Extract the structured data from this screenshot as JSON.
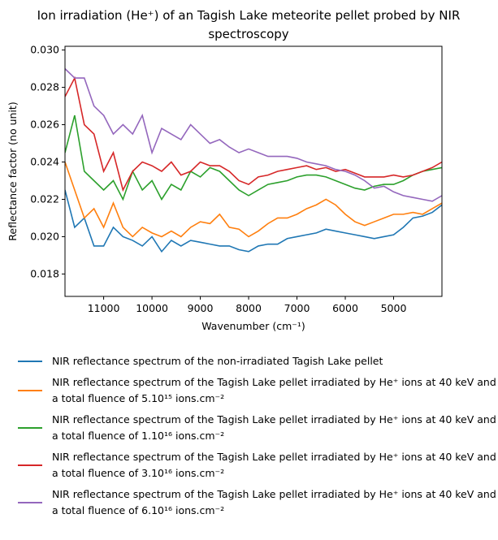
{
  "chart_data": {
    "type": "line",
    "title": "Ion irradiation (He⁺) of an Tagish Lake meteorite pellet probed by NIR spectroscopy",
    "x_label": "Wavenumber (cm⁻¹)",
    "y_label": "Reflectance factor (no unit)",
    "x": [
      11800,
      11600,
      11400,
      11200,
      11000,
      10800,
      10600,
      10400,
      10200,
      10000,
      9800,
      9600,
      9400,
      9200,
      9000,
      8800,
      8600,
      8400,
      8200,
      8000,
      7800,
      7600,
      7400,
      7200,
      7000,
      6800,
      6600,
      6400,
      6200,
      6000,
      5800,
      5600,
      5400,
      5200,
      5000,
      4800,
      4600,
      4400,
      4200,
      4000
    ],
    "xlim": [
      11800,
      4000
    ],
    "xticks": [
      11000,
      10000,
      9000,
      8000,
      7000,
      6000,
      5000
    ],
    "ylim": [
      0.0168,
      0.0302
    ],
    "yticks": [
      0.018,
      {
        "value": 0.02,
        "label": "0.020"
      },
      0.022,
      0.024,
      0.026,
      0.028,
      {
        "value": 0.03,
        "label": "0.030"
      }
    ],
    "series": [
      {
        "name": "NIR reflectance spectrum of the non-irradiated Tagish Lake pellet",
        "color": "#1f77b4",
        "values": [
          0.0225,
          0.0205,
          0.021,
          0.0195,
          0.0195,
          0.0205,
          0.02,
          0.0198,
          0.0195,
          0.02,
          0.0192,
          0.0198,
          0.0195,
          0.0198,
          0.0197,
          0.0196,
          0.0195,
          0.0195,
          0.0193,
          0.0192,
          0.0195,
          0.0196,
          0.0196,
          0.0199,
          0.02,
          0.0201,
          0.0202,
          0.0204,
          0.0203,
          0.0202,
          0.0201,
          0.02,
          0.0199,
          0.02,
          0.0201,
          0.0205,
          0.021,
          0.0211,
          0.0213,
          0.0217
        ]
      },
      {
        "name": "NIR reflectance spectrum of the Tagish Lake pellet irradiated by He⁺ ions at 40 keV and a total fluence of 5.10¹⁵ ions.cm⁻²",
        "color": "#ff7f0e",
        "values": [
          0.024,
          0.0225,
          0.021,
          0.0215,
          0.0205,
          0.0218,
          0.0205,
          0.02,
          0.0205,
          0.0202,
          0.02,
          0.0203,
          0.02,
          0.0205,
          0.0208,
          0.0207,
          0.0212,
          0.0205,
          0.0204,
          0.02,
          0.0203,
          0.0207,
          0.021,
          0.021,
          0.0212,
          0.0215,
          0.0217,
          0.022,
          0.0217,
          0.0212,
          0.0208,
          0.0206,
          0.0208,
          0.021,
          0.0212,
          0.0212,
          0.0213,
          0.0212,
          0.0215,
          0.0218
        ]
      },
      {
        "name": "NIR reflectance spectrum of the Tagish Lake pellet irradiated by He⁺ ions at 40 keV and a total fluence of 1.10¹⁶ ions.cm⁻²",
        "color": "#2ca02c",
        "values": [
          0.0245,
          0.0265,
          0.0235,
          0.023,
          0.0225,
          0.023,
          0.022,
          0.0235,
          0.0225,
          0.023,
          0.022,
          0.0228,
          0.0225,
          0.0235,
          0.0232,
          0.0237,
          0.0235,
          0.023,
          0.0225,
          0.0222,
          0.0225,
          0.0228,
          0.0229,
          0.023,
          0.0232,
          0.0233,
          0.0233,
          0.0232,
          0.023,
          0.0228,
          0.0226,
          0.0225,
          0.0227,
          0.0228,
          0.0228,
          0.023,
          0.0233,
          0.0235,
          0.0236,
          0.0237
        ]
      },
      {
        "name": "NIR reflectance spectrum of the Tagish Lake pellet irradiated by He⁺ ions at 40 keV and a total fluence of 3.10¹⁶ ions.cm⁻²",
        "color": "#d62728",
        "values": [
          0.0275,
          0.0285,
          0.026,
          0.0255,
          0.0235,
          0.0245,
          0.0225,
          0.0235,
          0.024,
          0.0238,
          0.0235,
          0.024,
          0.0233,
          0.0235,
          0.024,
          0.0238,
          0.0238,
          0.0235,
          0.023,
          0.0228,
          0.0232,
          0.0233,
          0.0235,
          0.0236,
          0.0237,
          0.0238,
          0.0236,
          0.0237,
          0.0235,
          0.0236,
          0.0234,
          0.0232,
          0.0232,
          0.0232,
          0.0233,
          0.0232,
          0.0233,
          0.0235,
          0.0237,
          0.024
        ]
      },
      {
        "name": "NIR reflectance spectrum of the Tagish Lake pellet irradiated by He⁺ ions at 40 keV and a total fluence of 6.10¹⁶ ions.cm⁻²",
        "color": "#9467bd",
        "values": [
          0.029,
          0.0285,
          0.0285,
          0.027,
          0.0265,
          0.0255,
          0.026,
          0.0255,
          0.0265,
          0.0245,
          0.0258,
          0.0255,
          0.0252,
          0.026,
          0.0255,
          0.025,
          0.0252,
          0.0248,
          0.0245,
          0.0247,
          0.0245,
          0.0243,
          0.0243,
          0.0243,
          0.0242,
          0.024,
          0.0239,
          0.0238,
          0.0236,
          0.0235,
          0.0233,
          0.023,
          0.0226,
          0.0227,
          0.0224,
          0.0222,
          0.0221,
          0.022,
          0.0219,
          0.0222
        ]
      }
    ]
  }
}
